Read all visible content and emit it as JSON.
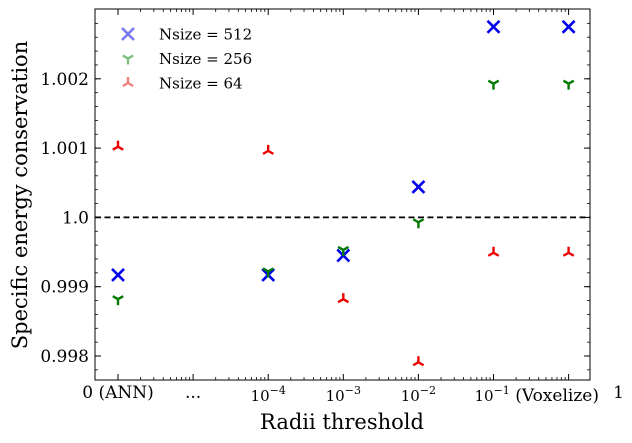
{
  "chart_data": {
    "type": "scatter",
    "xlabel": "Radii threshold",
    "ylabel": "Specific energy conservation",
    "ylim": [
      0.99775,
      1.003
    ],
    "x_ticks": [
      {
        "x": 0,
        "label": "0 (ANN)"
      },
      {
        "x": 1,
        "label": "..."
      },
      {
        "x": 2,
        "base": "10",
        "exp": "−4"
      },
      {
        "x": 3,
        "base": "10",
        "exp": "−3"
      },
      {
        "x": 4,
        "base": "10",
        "exp": "−2"
      },
      {
        "x": 5,
        "base": "10",
        "exp": "−1",
        "suffix": "(Voxelize)"
      },
      {
        "x": 6,
        "label": "1"
      }
    ],
    "y_ticks": [
      {
        "y": 0.998,
        "label": "0.998"
      },
      {
        "y": 0.999,
        "label": "0.999"
      },
      {
        "y": 1.0,
        "label": "1.0"
      },
      {
        "y": 1.001,
        "label": "1.001"
      },
      {
        "y": 1.002,
        "label": "1.002"
      }
    ],
    "reference_line": {
      "y": 1.0,
      "style": "dashed",
      "color": "#000000"
    },
    "legend_placement": "upper-left",
    "grid": false,
    "series": [
      {
        "name": "Nsize = 512",
        "marker": "x",
        "color": "#0000ee",
        "legend_color": "#7a7aee",
        "points": [
          {
            "x": 0,
            "y": 0.99917
          },
          {
            "x": 2,
            "y": 0.99917
          },
          {
            "x": 3,
            "y": 0.99945
          },
          {
            "x": 4,
            "y": 1.00044
          },
          {
            "x": 5,
            "y": 1.00275
          },
          {
            "x": 6,
            "y": 1.00275
          }
        ]
      },
      {
        "name": "Nsize = 256",
        "marker": "tri_down",
        "color": "#007a00",
        "legend_color": "#7fbf7f",
        "points": [
          {
            "x": 0,
            "y": 0.99882
          },
          {
            "x": 2,
            "y": 0.99922
          },
          {
            "x": 3,
            "y": 0.99953
          },
          {
            "x": 4,
            "y": 0.99993
          },
          {
            "x": 5,
            "y": 1.00193
          },
          {
            "x": 6,
            "y": 1.00193
          }
        ]
      },
      {
        "name": "Nsize = 64",
        "marker": "tri_up",
        "color": "#ee0000",
        "legend_color": "#f08080",
        "points": [
          {
            "x": 0,
            "y": 1.00102
          },
          {
            "x": 2,
            "y": 1.00096
          },
          {
            "x": 3,
            "y": 0.99882
          },
          {
            "x": 4,
            "y": 0.99791
          },
          {
            "x": 5,
            "y": 0.99949
          },
          {
            "x": 6,
            "y": 0.99949
          }
        ]
      }
    ]
  }
}
